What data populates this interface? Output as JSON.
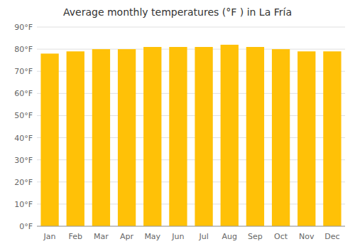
{
  "chart_data": {
    "type": "bar",
    "title": "Average monthly temperatures (°F ) in La Fría",
    "categories": [
      "Jan",
      "Feb",
      "Mar",
      "Apr",
      "May",
      "Jun",
      "Jul",
      "Aug",
      "Sep",
      "Oct",
      "Nov",
      "Dec"
    ],
    "values": [
      78,
      79,
      80,
      80,
      81,
      81,
      81,
      82,
      81,
      80,
      79,
      79
    ],
    "color": "#FFC107",
    "ylim": [
      0,
      90
    ],
    "yticks": [
      {
        "value": 0,
        "label": "0°F"
      },
      {
        "value": 10,
        "label": "10°F"
      },
      {
        "value": 20,
        "label": "20°F"
      },
      {
        "value": 30,
        "label": "30°F"
      },
      {
        "value": 40,
        "label": "40°F"
      },
      {
        "value": 50,
        "label": "50°F"
      },
      {
        "value": 60,
        "label": "60°F"
      },
      {
        "value": 70,
        "label": "70°F"
      },
      {
        "value": 80,
        "label": "80°F"
      },
      {
        "value": 90,
        "label": "90°F"
      }
    ],
    "grid": true
  }
}
